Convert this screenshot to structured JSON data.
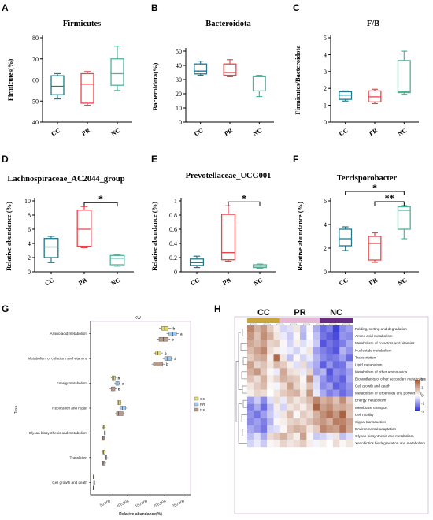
{
  "panels": {
    "A": {
      "letter": "A",
      "title": "Firmicutes"
    },
    "B": {
      "letter": "B",
      "title": "Bacteroidota"
    },
    "C": {
      "letter": "C",
      "title": "F/B"
    },
    "D": {
      "letter": "D",
      "title": "Lachnospiraceae_AC2044_group"
    },
    "E": {
      "letter": "E",
      "title": "Prevotellaceae_UCG001"
    },
    "F": {
      "letter": "F",
      "title": "Terrisporobacter"
    },
    "G": {
      "letter": "G"
    },
    "H": {
      "letter": "H"
    }
  },
  "colors": {
    "CC": "#1f7a8c",
    "PR": "#e8464a",
    "NC": "#4fb39a",
    "G_CC": "#e6d96a",
    "G_PR": "#9fc8ef",
    "G_NC": "#b89a8e"
  },
  "chart_data": [
    {
      "id": "A",
      "type": "box",
      "title": "Firmicutes",
      "xlabel": "",
      "ylabel": "Firmicutes(%)",
      "categories": [
        "CC",
        "PR",
        "NC"
      ],
      "ylim": [
        40,
        80
      ],
      "yticks": [
        40,
        50,
        60,
        70,
        80
      ],
      "boxes": [
        {
          "group": "CC",
          "min": 51,
          "q1": 53,
          "median": 57,
          "q3": 62,
          "max": 63
        },
        {
          "group": "PR",
          "min": 48,
          "q1": 49,
          "median": 58,
          "q3": 63,
          "max": 64
        },
        {
          "group": "NC",
          "min": 55,
          "q1": 57.5,
          "median": 63,
          "q3": 70,
          "max": 76
        }
      ],
      "significance": []
    },
    {
      "id": "B",
      "type": "box",
      "title": "Bacteroidota",
      "xlabel": "",
      "ylabel": "Bacteroidota(%)",
      "categories": [
        "CC",
        "PR",
        "NC"
      ],
      "ylim": [
        0,
        50
      ],
      "yticks": [
        0,
        10,
        20,
        30,
        40,
        50
      ],
      "boxes": [
        {
          "group": "CC",
          "min": 33,
          "q1": 34,
          "median": 36,
          "q3": 41,
          "max": 43
        },
        {
          "group": "PR",
          "min": 32,
          "q1": 33,
          "median": 35,
          "q3": 41,
          "max": 44
        },
        {
          "group": "NC",
          "min": 18,
          "q1": 22,
          "median": 32,
          "q3": 32.5,
          "max": 33
        }
      ],
      "significance": []
    },
    {
      "id": "C",
      "type": "box",
      "title": "F/B",
      "xlabel": "",
      "ylabel": "Firmicutes/Bacteroidota",
      "categories": [
        "CC",
        "PR",
        "NC"
      ],
      "ylim": [
        0,
        5
      ],
      "yticks": [
        0,
        1,
        2,
        3,
        4,
        5
      ],
      "boxes": [
        {
          "group": "CC",
          "min": 1.25,
          "q1": 1.35,
          "median": 1.6,
          "q3": 1.8,
          "max": 1.85
        },
        {
          "group": "PR",
          "min": 1.1,
          "q1": 1.2,
          "median": 1.5,
          "q3": 1.85,
          "max": 1.95
        },
        {
          "group": "NC",
          "min": 1.65,
          "q1": 1.75,
          "median": 1.8,
          "q3": 3.65,
          "max": 4.2
        }
      ],
      "significance": []
    },
    {
      "id": "D",
      "type": "box",
      "title": "Lachnospiraceae_AC2044_group",
      "xlabel": "",
      "ylabel": "Relative abundance (%)",
      "categories": [
        "CC",
        "PR",
        "NC"
      ],
      "ylim": [
        0,
        10
      ],
      "yticks": [
        0,
        2,
        4,
        6,
        8,
        10
      ],
      "boxes": [
        {
          "group": "CC",
          "min": 1.3,
          "q1": 2.0,
          "median": 3.5,
          "q3": 4.7,
          "max": 5.0
        },
        {
          "group": "PR",
          "min": 3.4,
          "q1": 3.6,
          "median": 6.0,
          "q3": 8.7,
          "max": 9.2
        },
        {
          "group": "NC",
          "min": 0.8,
          "q1": 1.0,
          "median": 1.9,
          "q3": 2.3,
          "max": 2.4
        }
      ],
      "significance": [
        {
          "from": "PR",
          "to": "NC",
          "label": "*",
          "level": 1
        }
      ]
    },
    {
      "id": "E",
      "type": "box",
      "title": "Prevotellaceae_UCG001",
      "xlabel": "",
      "ylabel": "Relative abundance (%)",
      "categories": [
        "CC",
        "PR",
        "NC"
      ],
      "ylim": [
        0,
        1.0
      ],
      "yticks": [
        0,
        0.2,
        0.4,
        0.6,
        0.8,
        1.0
      ],
      "boxes": [
        {
          "group": "CC",
          "min": 0.06,
          "q1": 0.09,
          "median": 0.13,
          "q3": 0.18,
          "max": 0.22
        },
        {
          "group": "PR",
          "min": 0.15,
          "q1": 0.17,
          "median": 0.27,
          "q3": 0.81,
          "max": 0.93
        },
        {
          "group": "NC",
          "min": 0.05,
          "q1": 0.06,
          "median": 0.08,
          "q3": 0.1,
          "max": 0.11
        }
      ],
      "significance": [
        {
          "from": "PR",
          "to": "NC",
          "label": "*",
          "level": 1
        }
      ]
    },
    {
      "id": "F",
      "type": "box",
      "title": "Terrisporobacter",
      "xlabel": "",
      "ylabel": "Relative abundance (%)",
      "categories": [
        "CC",
        "PR",
        "NC"
      ],
      "ylim": [
        0,
        6
      ],
      "yticks": [
        0,
        2,
        4,
        6
      ],
      "boxes": [
        {
          "group": "CC",
          "min": 1.8,
          "q1": 2.2,
          "median": 2.8,
          "q3": 3.6,
          "max": 3.8
        },
        {
          "group": "PR",
          "min": 0.8,
          "q1": 1.0,
          "median": 2.4,
          "q3": 3.0,
          "max": 3.3
        },
        {
          "group": "NC",
          "min": 2.8,
          "q1": 3.6,
          "median": 5.2,
          "q3": 5.5,
          "max": 5.6
        }
      ],
      "significance": [
        {
          "from": "PR",
          "to": "NC",
          "label": "**",
          "level": 1
        },
        {
          "from": "CC",
          "to": "NC",
          "label": "*",
          "level": 2
        }
      ]
    },
    {
      "id": "G",
      "type": "horizontal-box",
      "title": "KW",
      "xlabel": "Relative abundance(%)",
      "ylabel": "Taxa",
      "xlim": [
        0,
        270000
      ],
      "xticks": [
        50000,
        100000,
        150000,
        200000,
        250000
      ],
      "xtick_labels": [
        "50,000",
        "100,000",
        "150,000",
        "200,000",
        "250,000"
      ],
      "series": [
        "CC",
        "PR",
        "NC"
      ],
      "categories": [
        "Amino acid metabolism",
        "Metabolism of cofactors and vitamins",
        "Energy metabolism",
        "Replication and repair",
        "Glycan biosynthesis and metabolism",
        "Translation",
        "Cell growth and death"
      ],
      "boxes": [
        {
          "category": "Amino acid metabolism",
          "group": "CC",
          "min": 185000,
          "q1": 192000,
          "median": 200000,
          "q3": 210000,
          "max": 218000,
          "letter": "b"
        },
        {
          "category": "Amino acid metabolism",
          "group": "PR",
          "min": 205000,
          "q1": 212000,
          "median": 222000,
          "q3": 232000,
          "max": 238000,
          "letter": "a"
        },
        {
          "category": "Amino acid metabolism",
          "group": "NC",
          "min": 180000,
          "q1": 185000,
          "median": 197000,
          "q3": 210000,
          "max": 215000,
          "letter": "b"
        },
        {
          "category": "Metabolism of cofactors and vitamins",
          "group": "CC",
          "min": 170000,
          "q1": 176000,
          "median": 182000,
          "q3": 190000,
          "max": 195000,
          "letter": "b"
        },
        {
          "category": "Metabolism of cofactors and vitamins",
          "group": "PR",
          "min": 195000,
          "q1": 200000,
          "median": 208000,
          "q3": 218000,
          "max": 222000,
          "letter": "a"
        },
        {
          "category": "Metabolism of cofactors and vitamins",
          "group": "NC",
          "min": 165000,
          "q1": 170000,
          "median": 180000,
          "q3": 195000,
          "max": 200000,
          "letter": "b"
        },
        {
          "category": "Energy metabolism",
          "group": "CC",
          "min": 55000,
          "q1": 58000,
          "median": 62000,
          "q3": 67000,
          "max": 69000,
          "letter": "b"
        },
        {
          "category": "Energy metabolism",
          "group": "PR",
          "min": 65000,
          "q1": 68000,
          "median": 72000,
          "q3": 77000,
          "max": 80000,
          "letter": "a"
        },
        {
          "category": "Energy metabolism",
          "group": "NC",
          "min": 52000,
          "q1": 56000,
          "median": 60000,
          "q3": 66000,
          "max": 70000,
          "letter": "b"
        },
        {
          "category": "Replication and repair",
          "group": "CC",
          "min": 70000,
          "q1": 72000,
          "median": 76000,
          "q3": 82000,
          "max": 84000
        },
        {
          "category": "Replication and repair",
          "group": "PR",
          "min": 78000,
          "q1": 80000,
          "median": 86000,
          "q3": 95000,
          "max": 98000
        },
        {
          "category": "Replication and repair",
          "group": "NC",
          "min": 66000,
          "q1": 70000,
          "median": 75000,
          "q3": 88000,
          "max": 92000
        },
        {
          "category": "Glycan biosynthesis and metabolism",
          "group": "CC",
          "min": 32000,
          "q1": 34000,
          "median": 36000,
          "q3": 39000,
          "max": 41000
        },
        {
          "category": "Glycan biosynthesis and metabolism",
          "group": "PR",
          "min": 36000,
          "q1": 37000,
          "median": 38500,
          "q3": 40000,
          "max": 41000
        },
        {
          "category": "Glycan biosynthesis and metabolism",
          "group": "NC",
          "min": 30000,
          "q1": 32000,
          "median": 34000,
          "q3": 38000,
          "max": 40000
        },
        {
          "category": "Translation",
          "group": "CC",
          "min": 32000,
          "q1": 33000,
          "median": 35000,
          "q3": 39000,
          "max": 41000
        },
        {
          "category": "Translation",
          "group": "PR",
          "min": 38000,
          "q1": 39000,
          "median": 41000,
          "q3": 44000,
          "max": 46000
        },
        {
          "category": "Translation",
          "group": "NC",
          "min": 30000,
          "q1": 32000,
          "median": 34000,
          "q3": 40000,
          "max": 42000
        },
        {
          "category": "Cell growth and death",
          "group": "CC",
          "min": 6000,
          "q1": 7000,
          "median": 7500,
          "q3": 8200,
          "max": 8800
        },
        {
          "category": "Cell growth and death",
          "group": "PR",
          "min": 8000,
          "q1": 8500,
          "median": 9000,
          "q3": 9800,
          "max": 10500
        },
        {
          "category": "Cell growth and death",
          "group": "NC",
          "min": 6500,
          "q1": 7000,
          "median": 7800,
          "q3": 8800,
          "max": 9500
        }
      ],
      "legend": [
        "CC",
        "PR",
        "NC"
      ],
      "legend_position": "right"
    },
    {
      "id": "H",
      "type": "heatmap",
      "title": "",
      "xlabel": "",
      "ylabel": "",
      "column_groups": [
        {
          "name": "CC",
          "count": 5,
          "color": "#c9a43a"
        },
        {
          "name": "PR",
          "count": 6,
          "color": "#e6b8d6"
        },
        {
          "name": "NC",
          "count": 5,
          "color": "#6a2c82"
        }
      ],
      "rows": [
        "Folding, sorting and degradation",
        "Amino acid metabolism",
        "Metabolism of cofactors and vitamins",
        "Nucleotide metabolism",
        "Transcription",
        "Lipid metabolism",
        "Metabolism of other amino acids",
        "Biosynthesis of other secondary metabolites",
        "Cell growth and death",
        "Metabolism of terpenoids and polyketides",
        "Energy metabolism",
        "Membrane transport",
        "Cell motility",
        "Signal transduction",
        "Environmental adaptation",
        "Glycan biosynthesis and metabolism",
        "Xenobiotics biodegradation and metabolism"
      ],
      "color_range": [
        -2,
        2
      ],
      "color_scale": [
        "#2a2ad6",
        "#ffffff",
        "#a0522d"
      ],
      "legend_ticks": [
        "2",
        "1",
        "0",
        "-1",
        "-2"
      ],
      "values": [
        [
          1.4,
          0.9,
          1.2,
          0.6,
          0.2,
          -0.4,
          -0.3,
          0.3,
          -0.6,
          0.1,
          -0.8,
          -1.4,
          -1.2,
          -1.8,
          -1.1,
          -0.9
        ],
        [
          1.2,
          0.7,
          1.3,
          0.9,
          0.3,
          -0.2,
          -0.5,
          0.1,
          -0.7,
          0.0,
          -0.6,
          -1.3,
          -1.5,
          -1.7,
          -1.0,
          -1.1
        ],
        [
          1.0,
          0.8,
          1.1,
          0.5,
          0.6,
          0.1,
          -0.4,
          0.2,
          -0.3,
          -0.1,
          -0.5,
          -1.6,
          -1.3,
          -1.5,
          -1.2,
          -0.8
        ],
        [
          0.8,
          1.1,
          1.4,
          0.4,
          0.2,
          -0.1,
          -0.2,
          -0.4,
          -0.1,
          0.3,
          -0.9,
          -1.2,
          -1.4,
          -1.6,
          -0.7,
          -1.0
        ],
        [
          0.6,
          0.9,
          1.0,
          0.2,
          1.7,
          0.3,
          -0.6,
          0.1,
          -0.4,
          -0.2,
          -0.7,
          -1.1,
          -1.3,
          -1.2,
          -0.9,
          -1.4
        ],
        [
          1.1,
          0.5,
          0.7,
          0.3,
          0.8,
          0.6,
          0.2,
          -0.3,
          0.4,
          -0.5,
          -0.8,
          -1.5,
          -1.0,
          -1.4,
          -1.3,
          -0.6
        ],
        [
          0.9,
          1.2,
          0.6,
          0.1,
          -0.2,
          1.0,
          0.4,
          0.3,
          -0.2,
          0.5,
          -0.9,
          -0.7,
          -1.6,
          -1.1,
          -1.2,
          -0.9
        ],
        [
          0.7,
          0.4,
          0.9,
          0.2,
          0.5,
          0.9,
          0.7,
          0.6,
          0.1,
          1.3,
          -0.4,
          -1.0,
          -1.4,
          -1.2,
          -1.5,
          -0.8
        ],
        [
          0.3,
          0.6,
          0.8,
          0.1,
          -0.1,
          0.4,
          1.1,
          0.5,
          0.2,
          0.7,
          -0.3,
          -1.1,
          -0.9,
          -1.5,
          -1.3,
          -1.0
        ],
        [
          0.2,
          0.5,
          0.4,
          0.0,
          0.3,
          0.6,
          0.8,
          0.9,
          0.3,
          1.2,
          -0.2,
          -0.8,
          -1.2,
          -1.0,
          -1.4,
          -1.1
        ],
        [
          -0.9,
          -0.5,
          -1.1,
          -0.3,
          0.4,
          -0.2,
          0.6,
          0.3,
          0.5,
          0.8,
          1.4,
          0.9,
          1.1,
          0.7,
          1.3,
          0.6
        ],
        [
          -1.2,
          -0.8,
          -1.4,
          -0.6,
          0.2,
          -0.4,
          0.3,
          0.5,
          0.2,
          0.6,
          1.8,
          1.1,
          1.3,
          0.9,
          1.0,
          0.8
        ],
        [
          -1.0,
          -1.3,
          -0.9,
          -0.5,
          -0.2,
          0.3,
          0.8,
          0.1,
          0.6,
          0.4,
          0.9,
          1.3,
          1.6,
          1.2,
          1.8,
          0.7
        ],
        [
          -1.1,
          -0.9,
          -1.2,
          -0.7,
          0.1,
          0.2,
          0.5,
          0.6,
          0.4,
          0.7,
          1.0,
          1.2,
          0.9,
          1.5,
          1.4,
          1.1
        ],
        [
          -0.8,
          -1.0,
          -1.3,
          -0.4,
          -0.3,
          0.1,
          0.7,
          0.9,
          0.8,
          0.3,
          0.6,
          1.4,
          1.2,
          1.1,
          1.6,
          1.0
        ],
        [
          -0.6,
          -0.3,
          -0.8,
          0.4,
          0.6,
          0.9,
          0.5,
          0.2,
          1.1,
          0.1,
          -0.5,
          -0.4,
          -0.2,
          0.3,
          -0.6,
          -0.3
        ],
        [
          -0.4,
          -0.2,
          -0.5,
          0.1,
          0.2,
          0.5,
          0.3,
          0.4,
          0.6,
          0.2,
          -0.1,
          0.2,
          0.0,
          0.4,
          0.1,
          0.3
        ]
      ]
    }
  ]
}
